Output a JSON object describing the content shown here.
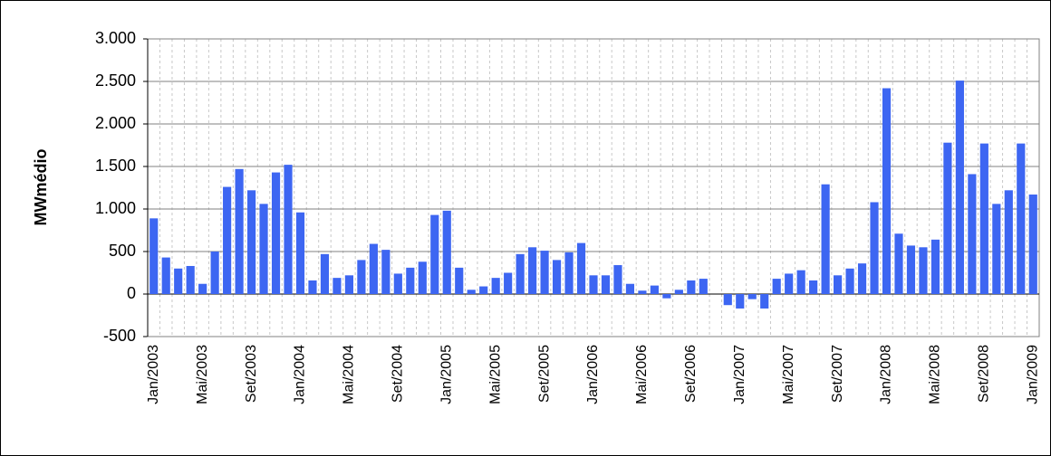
{
  "chart_data": {
    "type": "bar",
    "y_label": "MWmédio",
    "categories": [
      "Jan/2003",
      null,
      null,
      null,
      "Mai/2003",
      null,
      null,
      null,
      "Set/2003",
      null,
      null,
      null,
      "Jan/2004",
      null,
      null,
      null,
      "Mai/2004",
      null,
      null,
      null,
      "Set/2004",
      null,
      null,
      null,
      "Jan/2005",
      null,
      null,
      null,
      "Mai/2005",
      null,
      null,
      null,
      "Set/2005",
      null,
      null,
      null,
      "Jan/2006",
      null,
      null,
      null,
      "Mai/2006",
      null,
      null,
      null,
      "Set/2006",
      null,
      null,
      null,
      "Jan/2007",
      null,
      null,
      null,
      "Mai/2007",
      null,
      null,
      null,
      "Set/2007",
      null,
      null,
      null,
      "Jan/2008",
      null,
      null,
      null,
      "Mai/2008",
      null,
      null,
      null,
      "Set/2008",
      null,
      null,
      null,
      "Jan/2009"
    ],
    "values": [
      890,
      430,
      300,
      330,
      120,
      500,
      1260,
      1470,
      1220,
      1060,
      1430,
      1520,
      960,
      160,
      470,
      190,
      220,
      400,
      590,
      520,
      240,
      310,
      380,
      930,
      980,
      310,
      50,
      90,
      190,
      250,
      470,
      550,
      510,
      400,
      490,
      600,
      220,
      220,
      340,
      120,
      40,
      100,
      -50,
      50,
      160,
      180,
      0,
      -130,
      -170,
      -60,
      -170,
      180,
      240,
      280,
      160,
      1290,
      220,
      300,
      360,
      1080,
      2420,
      710,
      570,
      550,
      640,
      1780,
      2510,
      1410,
      1770,
      1060,
      1220,
      1770,
      1170
    ],
    "color": "#3d66f2",
    "ylim": [
      -500,
      3000
    ],
    "yticks": [
      -500,
      0,
      500,
      {
        "value": 1000,
        "label": "1.000"
      },
      {
        "value": 1500,
        "label": "1.500"
      },
      {
        "value": 2000,
        "label": "2.000"
      },
      {
        "value": 2500,
        "label": "2.500"
      },
      {
        "value": 3000,
        "label": "3.000"
      }
    ],
    "grid": true
  }
}
